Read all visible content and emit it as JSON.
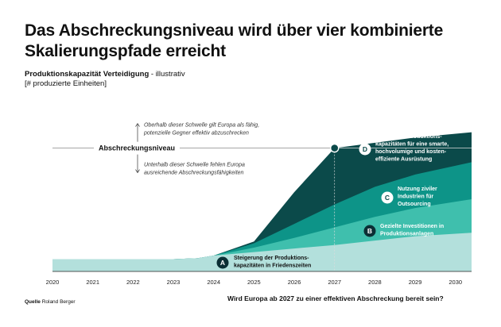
{
  "chart_data": {
    "type": "area",
    "title": "Das Abschreckungsniveau wird über vier kombinierte Skalierungspfade erreicht",
    "subtitle_bold": "Produktionskapazität Verteidigung",
    "subtitle_rest": " - illustrativ",
    "ylabel": "[# produzierte Einheiten]",
    "x": [
      2020,
      2021,
      2022,
      2023,
      2024,
      2025,
      2026,
      2027,
      2028,
      2029,
      2030
    ],
    "xlim": [
      2020,
      2030.4
    ],
    "ylim": [
      0,
      100
    ],
    "threshold": {
      "label": "Abschreckungsniveau",
      "value": 70,
      "crossing_year": 2027,
      "above_text": [
        "Oberhalb dieser Schwelle gilt Europa als fähig,",
        "potenzielle Gegner effektiv abzuschrecken"
      ],
      "below_text": [
        "Unterhalb dieser Schwelle fehlen Europa",
        "ausreichende Abschreckungsfähigkeiten"
      ]
    },
    "series": [
      {
        "key": "A",
        "color": "#b3e0dc",
        "label": [
          "Steigerung der Produktions-",
          "kapazitäten in Friedenszeiten"
        ],
        "points": [
          [
            2020,
            7
          ],
          [
            2023,
            7
          ],
          [
            2023.6,
            7.5
          ],
          [
            2024,
            9
          ],
          [
            2025,
            11
          ],
          [
            2026,
            13
          ],
          [
            2027,
            15
          ],
          [
            2028,
            17.5
          ],
          [
            2029,
            20
          ],
          [
            2030.4,
            22
          ]
        ]
      },
      {
        "key": "B",
        "color": "#3fbfad",
        "label": [
          "Gezielte Investitionen in",
          "Produktionsanlagen"
        ],
        "points": [
          [
            2020,
            7
          ],
          [
            2023,
            7
          ],
          [
            2023.6,
            7.5
          ],
          [
            2024,
            9
          ],
          [
            2025,
            13.5
          ],
          [
            2026,
            19
          ],
          [
            2027,
            25
          ],
          [
            2028,
            31
          ],
          [
            2029,
            36
          ],
          [
            2030.4,
            41
          ]
        ]
      },
      {
        "key": "C",
        "color": "#0d9488",
        "label": [
          "Nutzung ziviler",
          "Industrien für",
          "Outsourcing"
        ],
        "points": [
          [
            2020,
            7
          ],
          [
            2023,
            7
          ],
          [
            2023.6,
            7.5
          ],
          [
            2024,
            9
          ],
          [
            2025,
            16
          ],
          [
            2026,
            27
          ],
          [
            2027,
            38
          ],
          [
            2028,
            48
          ],
          [
            2029,
            55
          ],
          [
            2030.4,
            62
          ]
        ]
      },
      {
        "key": "D",
        "color": "#0b4a4a",
        "label": [
          "Aufbau von Produktions-",
          "kapazitäten für eine smarte,",
          "hochvolumige und kosten-",
          "effiziente Ausrüstung"
        ],
        "points": [
          [
            2020,
            7
          ],
          [
            2023,
            7
          ],
          [
            2023.6,
            7.5
          ],
          [
            2024,
            9
          ],
          [
            2025,
            17
          ],
          [
            2026,
            45
          ],
          [
            2027,
            70
          ],
          [
            2028,
            73
          ],
          [
            2029,
            76
          ],
          [
            2030.4,
            79
          ]
        ]
      }
    ]
  },
  "source": {
    "label": "Quelle",
    "text": "Roland Berger"
  },
  "question": "Wird Europa ab 2027 zu einer effektiven Abschreckung bereit sein?"
}
